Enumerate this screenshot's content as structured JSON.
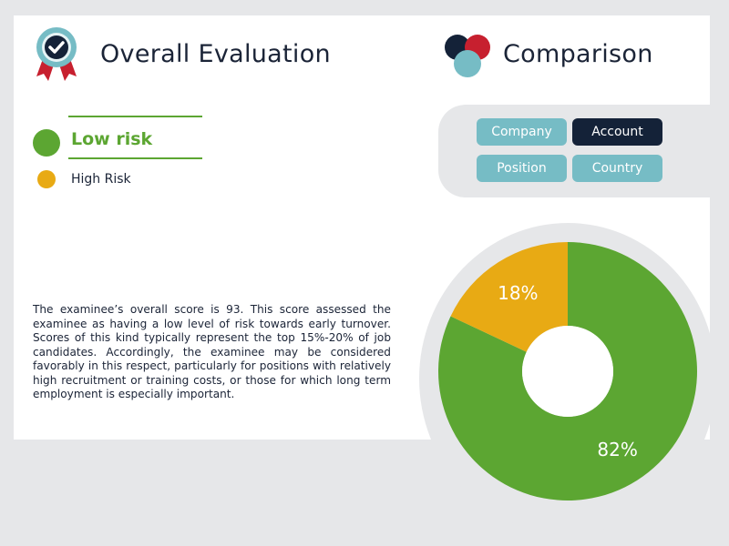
{
  "header": {
    "title": "Overall Evaluation",
    "comparison_title": "Comparison"
  },
  "legend": {
    "low": {
      "label": "Low risk",
      "color": "#5ca632"
    },
    "high": {
      "label": "High Risk",
      "color": "#e8aa14"
    }
  },
  "description": "The examinee’s overall score is 93. This score assessed the examinee as having a low level of risk towards early turnover. Scores of this kind typically represent the top 15%-20% of job candidates. Accordingly, the examinee may be considered favorably in this respect, particularly for positions with relatively high recruitment or training costs, or those for which long term employment is especially important.",
  "comparison": {
    "buttons": [
      {
        "label": "Company",
        "active": false
      },
      {
        "label": "Account",
        "active": true
      },
      {
        "label": "Position",
        "active": false
      },
      {
        "label": "Country",
        "active": false
      }
    ]
  },
  "icons": {
    "badge": "award-ribbon-check-icon",
    "comparison": "overlapping-circles-icon"
  },
  "colors": {
    "accent_teal": "#76bcc5",
    "navy": "#142238",
    "red": "#c7202f"
  },
  "chart_data": {
    "type": "pie",
    "donut": true,
    "slices": [
      {
        "label": "82%",
        "value": 82,
        "color": "#5ca632"
      },
      {
        "label": "18%",
        "value": 18,
        "color": "#e8aa14"
      }
    ]
  }
}
